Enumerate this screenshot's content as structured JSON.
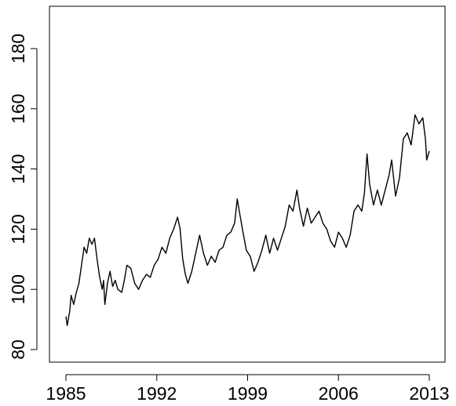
{
  "chart_data": {
    "type": "line",
    "color": "#000000",
    "x": [
      1985.0,
      1985.1,
      1985.3,
      1985.4,
      1985.6,
      1985.8,
      1986.0,
      1986.2,
      1986.4,
      1986.6,
      1986.8,
      1987.0,
      1987.2,
      1987.4,
      1987.6,
      1987.8,
      1987.9,
      1988.0,
      1988.2,
      1988.4,
      1988.6,
      1988.8,
      1989.0,
      1989.3,
      1989.5,
      1989.7,
      1990.0,
      1990.3,
      1990.6,
      1990.9,
      1991.2,
      1991.5,
      1991.8,
      1992.1,
      1992.4,
      1992.7,
      1993.0,
      1993.3,
      1993.6,
      1993.8,
      1994.0,
      1994.2,
      1994.4,
      1994.7,
      1995.0,
      1995.3,
      1995.6,
      1995.9,
      1996.2,
      1996.5,
      1996.8,
      1997.1,
      1997.4,
      1997.7,
      1998.0,
      1998.2,
      1998.4,
      1998.6,
      1998.9,
      1999.2,
      1999.5,
      1999.8,
      2000.1,
      2000.4,
      2000.7,
      2001.0,
      2001.3,
      2001.6,
      2001.9,
      2002.2,
      2002.5,
      2002.8,
      2003.0,
      2003.3,
      2003.6,
      2003.9,
      2004.2,
      2004.5,
      2004.8,
      2005.1,
      2005.4,
      2005.7,
      2006.0,
      2006.3,
      2006.6,
      2006.9,
      2007.2,
      2007.5,
      2007.8,
      2008.0,
      2008.2,
      2008.4,
      2008.7,
      2009.0,
      2009.3,
      2009.6,
      2009.9,
      2010.1,
      2010.4,
      2010.7,
      2011.0,
      2011.3,
      2011.6,
      2011.9,
      2012.2,
      2012.5,
      2012.7,
      2012.8,
      2013.0
    ],
    "values": [
      91,
      88,
      93,
      98,
      95,
      99,
      102,
      108,
      114,
      112,
      117,
      115,
      117,
      110,
      104,
      100,
      103,
      95,
      102,
      106,
      101,
      103,
      100,
      99,
      103,
      108,
      107,
      102,
      100,
      103,
      105,
      104,
      108,
      110,
      114,
      112,
      117,
      120,
      124,
      120,
      110,
      105,
      102,
      106,
      112,
      118,
      112,
      108,
      111,
      109,
      113,
      114,
      118,
      119,
      122,
      130,
      125,
      120,
      113,
      111,
      106,
      109,
      113,
      118,
      112,
      117,
      113,
      117,
      121,
      128,
      126,
      133,
      127,
      121,
      127,
      122,
      124,
      126,
      122,
      120,
      116,
      114,
      119,
      117,
      114,
      118,
      126,
      128,
      126,
      132,
      145,
      135,
      128,
      133,
      128,
      133,
      138,
      143,
      131,
      137,
      150,
      152,
      148,
      158,
      155,
      157,
      150,
      143,
      146
    ],
    "xlim": [
      1983.73,
      2014.21
    ],
    "ylim": [
      75.83,
      194.06
    ],
    "xticks": [
      1985,
      1992,
      1999,
      2006,
      2013
    ],
    "yticks": [
      80,
      100,
      120,
      140,
      160,
      180
    ]
  }
}
